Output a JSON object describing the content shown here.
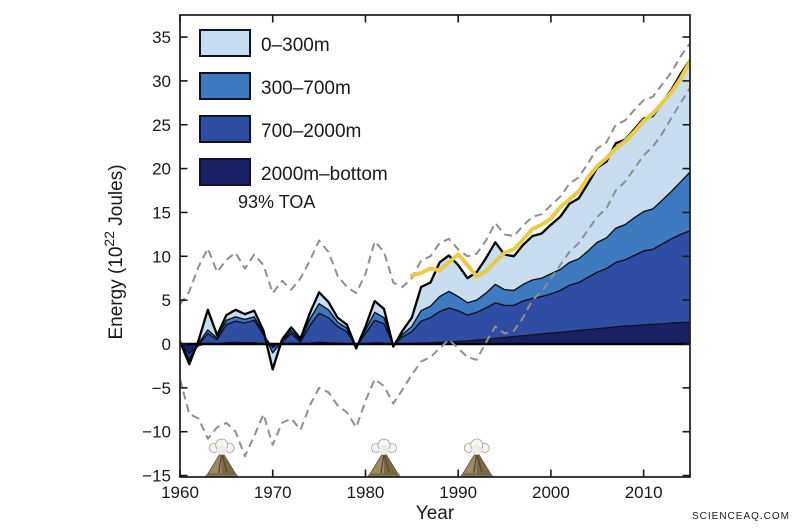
{
  "watermark": "SCIENCEAQ.COM",
  "chart_data": {
    "type": "area",
    "title": "",
    "xlabel": "Year",
    "ylabel": "Energy (10^22 Joules)",
    "ylabel_parts": {
      "prefix": "Energy (10",
      "super": "22",
      "suffix": " Joules)"
    },
    "xlim": [
      1960,
      2015
    ],
    "ylim": [
      -15.2,
      37.5
    ],
    "x_step": 1,
    "grid": false,
    "legend_position": "top-left",
    "x_ticks": [
      1960,
      1970,
      1980,
      1990,
      2000,
      2010
    ],
    "x_tick_labels": [
      "1960",
      "1970",
      "1980",
      "1990",
      "2000",
      "2010"
    ],
    "y_ticks": [
      -15,
      -10,
      -5,
      0,
      5,
      10,
      15,
      20,
      25,
      30,
      35
    ],
    "y_tick_labels": [
      "−15",
      "−10",
      "−5",
      "0",
      "5",
      "10",
      "15",
      "20",
      "25",
      "30",
      "35"
    ],
    "legend": [
      {
        "label": "0–300m",
        "color": "#c8ddf0"
      },
      {
        "label": "300–700m",
        "color": "#3d7abf"
      },
      {
        "label": "700–2000m",
        "color": "#2e4da3"
      },
      {
        "label": "2000m–bottom",
        "color": "#1b2065"
      }
    ],
    "series": [
      {
        "name": "2000m-bottom",
        "color": "#1b2065",
        "cumulative": [
          0.0,
          -1.1,
          -0.2,
          0.1,
          0.0,
          0.15,
          0.2,
          0.15,
          0.15,
          0.05,
          -0.2,
          0.0,
          0.1,
          0.0,
          0.1,
          0.2,
          0.15,
          0.1,
          0.05,
          -0.1,
          0.05,
          0.15,
          0.1,
          -0.1,
          0.0,
          0.05,
          0.1,
          0.15,
          0.2,
          0.25,
          0.3,
          0.35,
          0.45,
          0.55,
          0.65,
          0.75,
          0.85,
          0.95,
          1.05,
          1.15,
          1.25,
          1.35,
          1.45,
          1.55,
          1.65,
          1.75,
          1.85,
          1.95,
          2.05,
          2.1,
          2.2,
          2.25,
          2.3,
          2.4,
          2.45,
          2.5
        ]
      },
      {
        "name": "700-2000m",
        "color": "#2e4da3",
        "cumulative": [
          0.1,
          -1.7,
          -0.1,
          1.2,
          0.5,
          2.2,
          2.6,
          2.4,
          2.7,
          1.0,
          -0.4,
          0.2,
          1.2,
          0.2,
          2.1,
          3.5,
          3.0,
          2.0,
          1.4,
          -0.3,
          1.2,
          2.7,
          2.3,
          -0.1,
          0.8,
          1.4,
          2.6,
          3.0,
          3.7,
          4.1,
          3.8,
          3.3,
          3.6,
          4.1,
          4.7,
          4.4,
          4.4,
          4.9,
          5.2,
          5.4,
          5.7,
          6.1,
          6.7,
          7.0,
          7.6,
          8.2,
          8.6,
          9.3,
          9.6,
          10.1,
          10.6,
          10.8,
          11.4,
          12.0,
          12.5,
          12.9
        ]
      },
      {
        "name": "300-700m",
        "color": "#3d7abf",
        "cumulative": [
          0.2,
          -2.0,
          0.1,
          1.6,
          0.7,
          2.7,
          3.1,
          2.8,
          3.1,
          1.2,
          -1.0,
          0.3,
          1.5,
          0.4,
          2.8,
          4.6,
          3.9,
          2.5,
          1.8,
          -0.4,
          1.6,
          3.6,
          3.0,
          -0.2,
          1.1,
          2.0,
          3.8,
          4.3,
          5.4,
          6.0,
          5.4,
          4.7,
          5.0,
          5.8,
          6.8,
          6.2,
          6.1,
          6.8,
          7.3,
          7.5,
          8.0,
          8.5,
          9.3,
          9.7,
          10.6,
          11.6,
          12.1,
          13.2,
          13.6,
          14.4,
          15.1,
          15.4,
          16.4,
          17.4,
          18.5,
          19.6
        ]
      },
      {
        "name": "0-300m",
        "color": "#c8ddf0",
        "cumulative": [
          0.3,
          -2.3,
          0.4,
          3.9,
          1.0,
          3.3,
          3.9,
          3.4,
          3.8,
          1.5,
          -2.9,
          0.5,
          1.9,
          0.6,
          3.5,
          5.9,
          4.8,
          3.0,
          2.2,
          -0.5,
          2.0,
          4.9,
          4.0,
          -0.3,
          1.5,
          3.0,
          6.5,
          7.0,
          9.3,
          10.1,
          9.0,
          7.5,
          8.2,
          9.8,
          11.6,
          10.2,
          10.0,
          11.3,
          12.3,
          12.6,
          13.6,
          14.5,
          16.0,
          16.6,
          18.3,
          20.1,
          20.8,
          22.9,
          23.3,
          24.5,
          25.7,
          26.0,
          27.5,
          29.0,
          30.8,
          32.4
        ]
      }
    ],
    "uncertainty": {
      "color": "#8f8f8f",
      "upper": [
        4.5,
        6.0,
        8.8,
        10.9,
        8.2,
        9.6,
        10.4,
        8.6,
        10.2,
        9.0,
        5.8,
        7.2,
        6.2,
        7.5,
        9.5,
        11.8,
        10.5,
        7.8,
        6.5,
        5.8,
        8.0,
        11.7,
        10.5,
        7.0,
        6.5,
        7.5,
        9.5,
        10.0,
        11.5,
        12.0,
        10.8,
        10.0,
        10.3,
        11.8,
        13.8,
        12.5,
        12.3,
        13.5,
        14.5,
        14.8,
        15.8,
        16.8,
        18.3,
        19.0,
        20.6,
        22.3,
        23.0,
        25.0,
        25.5,
        26.7,
        27.8,
        28.2,
        29.6,
        31.0,
        32.8,
        34.3
      ],
      "lower": [
        -4.0,
        -8.0,
        -8.5,
        -10.8,
        -9.5,
        -9.0,
        -10.0,
        -12.8,
        -10.5,
        -8.0,
        -11.5,
        -9.0,
        -8.5,
        -9.8,
        -7.0,
        -5.0,
        -5.5,
        -7.0,
        -7.8,
        -9.5,
        -6.5,
        -4.0,
        -4.8,
        -6.8,
        -5.2,
        -3.5,
        -2.0,
        -1.5,
        -0.5,
        0.5,
        -0.5,
        -1.5,
        -1.8,
        0.2,
        2.0,
        1.2,
        1.5,
        3.0,
        5.0,
        6.0,
        7.5,
        9.0,
        10.5,
        11.5,
        13.0,
        14.5,
        15.5,
        17.5,
        18.5,
        20.0,
        21.5,
        22.5,
        24.0,
        25.8,
        27.5,
        29.2
      ]
    },
    "toa": {
      "label": "93% TOA",
      "color": "#e9cc44",
      "start_year": 1985,
      "values": [
        7.8,
        8.1,
        8.6,
        8.4,
        9.3,
        10.2,
        9.0,
        7.7,
        8.3,
        9.4,
        10.4,
        10.8,
        11.9,
        13.1,
        13.6,
        14.3,
        15.6,
        16.5,
        17.4,
        19.0,
        20.3,
        21.2,
        22.3,
        23.1,
        24.2,
        25.4,
        26.3,
        27.5,
        28.7,
        30.3,
        32.2
      ]
    },
    "volcano_years": [
      1964.5,
      1982,
      1992
    ]
  }
}
